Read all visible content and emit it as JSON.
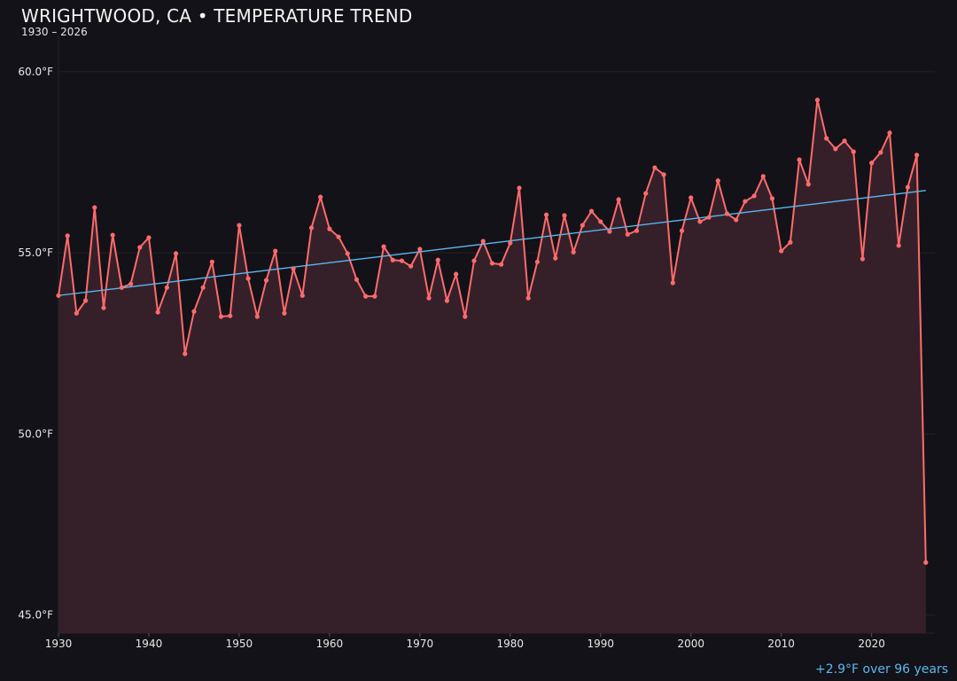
{
  "chart_data": {
    "type": "line",
    "title": "WRIGHTWOOD, CA • TEMPERATURE TREND",
    "subtitle": "1930 – 2026",
    "annotation": "+2.9°F over 96 years",
    "xlabel": "",
    "ylabel": "",
    "xlim": [
      1930,
      2027
    ],
    "ylim": [
      44.5,
      61
    ],
    "grid": true,
    "x_ticks": [
      "1930",
      "1940",
      "1950",
      "1960",
      "1970",
      "1980",
      "1990",
      "2000",
      "2010",
      "2020"
    ],
    "y_ticks": [
      "45.0°F",
      "50.0°F",
      "55.0°F",
      "60.0°F"
    ],
    "colors": {
      "line": "#ff6b6b",
      "fill": "#35202a",
      "trend": "#5ab8f0",
      "background": "#131218"
    },
    "x_start": 1930,
    "values": [
      53.82,
      55.47,
      53.33,
      53.68,
      56.25,
      53.48,
      55.49,
      54.04,
      54.14,
      55.15,
      55.42,
      53.36,
      54.04,
      54.98,
      52.21,
      53.38,
      54.04,
      54.75,
      53.24,
      53.26,
      55.76,
      54.29,
      53.24,
      54.24,
      55.05,
      53.33,
      54.56,
      53.82,
      55.69,
      56.54,
      55.66,
      55.44,
      54.98,
      54.26,
      53.8,
      53.8,
      55.17,
      54.8,
      54.78,
      54.63,
      55.1,
      53.75,
      54.8,
      53.68,
      54.41,
      53.24,
      54.78,
      55.32,
      54.71,
      54.68,
      55.27,
      56.79,
      53.75,
      54.75,
      56.05,
      54.85,
      56.03,
      55.02,
      55.76,
      56.15,
      55.86,
      55.59,
      56.47,
      55.51,
      55.61,
      56.64,
      57.35,
      57.16,
      54.17,
      55.61,
      56.52,
      55.86,
      55.98,
      56.99,
      56.08,
      55.91,
      56.42,
      56.57,
      57.11,
      56.5,
      55.05,
      55.29,
      57.57,
      56.89,
      59.22,
      58.16,
      57.87,
      58.09,
      57.79,
      54.83,
      57.48,
      57.77,
      58.31,
      55.2,
      56.81,
      57.7,
      46.45
    ],
    "trend": {
      "start": [
        1930,
        53.82
      ],
      "end": [
        2026,
        56.72
      ]
    }
  }
}
